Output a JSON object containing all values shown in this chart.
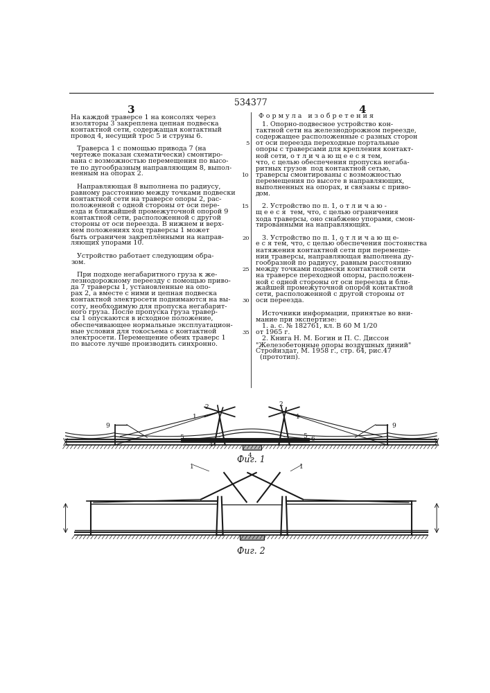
{
  "patent_number": "534377",
  "page_left": "3",
  "page_right": "4",
  "bg": "#ffffff",
  "lc": "#1a1a1a",
  "fs_body": 6.8,
  "fs_label": 6.5,
  "col1_lines": [
    "На каждой траверсе 1 на консолях через",
    "изоляторы 3 закреплена цепная подвеска",
    "контактной сети, содержащая контактный",
    "провод 4, несущий трос 5 и струны 6.",
    "",
    "   Траверса 1 с помощью привода 7 (на",
    "чертеже показан схематически) смонтиро-",
    "вана с возможностью перемещения по высо-",
    "те по дугообразным направляющим 8, выпол-",
    "ненным на опорах 2.",
    "",
    "   Направляющая 8 выполнена по радиусу,",
    "равному расстоянию между точками подвески",
    "контактной сети на траверсе опоры 2, рас-",
    "положенной с одной стороны от оси пере-",
    "езда и ближайшей промежуточной опорой 9",
    "контактной сети, расположенной с другой",
    "стороны от оси переезда. В нижнем и верх-",
    "нем положениях ход траверсы 1 может",
    "быть ограничен закреплёнными на направ-",
    "ляющих упорами 10.",
    "",
    "   Устройство работает следующим обра-",
    "зом.",
    "",
    "   При подходе негабаритного груза к же-",
    "лезнодорожному переезду с помощью приво-",
    "да 7 траверсы 1, установленные на опо-",
    "рах 2, а вместе с ними и цепная подвеска",
    "контактной электросети поднимаются на вы-",
    "соту, необходимую для пропуска негабарит-",
    "ного груза. После пропуска груза травер-",
    "сы 1 опускаются в исходное положение,",
    "обеспечивающее нормальные эксплуатацион-",
    "ные условия для токосъема с контактной",
    "электросети. Перемещение обеих траверс 1",
    "по высоте лучше производить синхронно."
  ],
  "col2_header": "Ф о р м у л а   и з о б р е т е н и я",
  "col2_lines": [
    "   1. Опорно-подвесное устройство кон-",
    "тактной сети на железнодорожном переезде,",
    "содержащее расположенные с разных сторон",
    "от оси переезда переходные портальные",
    "опоры с траверсами для крепления контакт-",
    "ной сети, о т л и ч а ю щ е е с я тем,",
    "что, с целью обеспечения пропуска негаба-",
    "ритных грузов  под контактной сетью,",
    "траверсы смонтированы с возможностью",
    "перемещения по высоте в направляющих,",
    "выполненных на опорах, и связаны с приво-",
    "дом.",
    "",
    "   2. Устройство по п. 1, о т л и ч а ю -",
    "щ е е с я  тем, что, с целью ограничения",
    "хода траверсы, оно снабжено упорами, смон-",
    "тированными на направляющих.",
    "",
    "   3. Устройство по п. 1, о т л и ч а ю щ е-",
    "е с я тем, что, с целью обеспечения постоянства",
    "натяжения контактной сети при перемеще-",
    "нии траверсы, направляющая выполнена ду-",
    "гообразной по радиусу, равным расстоянию",
    "между точками подвески контактной сети",
    "на траверсе переходной опоры, расположен-",
    "ной с одной стороны от оси переезда и бли-",
    "жайшей промежуточной опорой контактной",
    "сети, расположенной с другой стороны от",
    "оси переезда.",
    "",
    "   Источники информации, принятые во вни-",
    "мание при экспертизе:",
    "   1. а. с. № 182761, кл. В 60 М 1/20",
    "от 1965 г.",
    "   2. Книга Н. М. Богин и П. С. Диссон",
    "\"Железобетонные опоры воздушных линий\"",
    "Стройиздат, М. 1958 г., стр. 64, рис.47",
    "  (прототип)."
  ],
  "line_numbers": [
    "5",
    "10",
    "15",
    "20",
    "25",
    "30",
    "35"
  ],
  "fig1_caption": "Фиг. 1",
  "fig2_caption": "Фиг. 2"
}
